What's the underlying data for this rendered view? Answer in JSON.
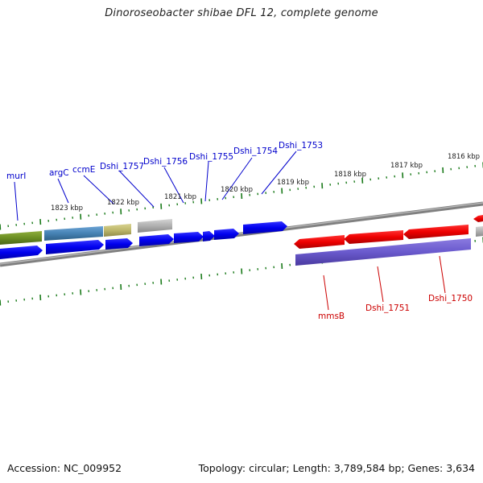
{
  "title": "Dinoroseobacter shibae DFL 12, complete genome",
  "footer": {
    "accession": "Accession: NC_009952",
    "summary": "Topology: circular; Length: 3,789,584 bp; Genes: 3,634"
  },
  "scale_labels": [
    "1823 kbp",
    "1822 kbp",
    "1821 kbp",
    "1820 kbp",
    "1819 kbp",
    "1818 kbp",
    "1817 kbp",
    "1816 kbp"
  ],
  "genes_top": [
    "murI",
    "argC",
    "ccmE",
    "Dshi_1757",
    "Dshi_1756",
    "Dshi_1755",
    "Dshi_1754",
    "Dshi_1753"
  ],
  "genes_bottom": [
    "mmsB",
    "Dshi_1751",
    "Dshi_1750"
  ],
  "colors": {
    "forward_gene": "#0000ee",
    "reverse_gene": "#ee0000",
    "cog_purple": "#6a5acd",
    "cog_olive": "#6b8e23",
    "cog_steelblue": "#4682b4",
    "cog_khaki": "#bdb76b",
    "cog_gray": "#b0b0b0",
    "backbone": "#808080",
    "tick": "#1a7a1a",
    "label_blue": "#0000cc",
    "label_red": "#cc0000"
  }
}
